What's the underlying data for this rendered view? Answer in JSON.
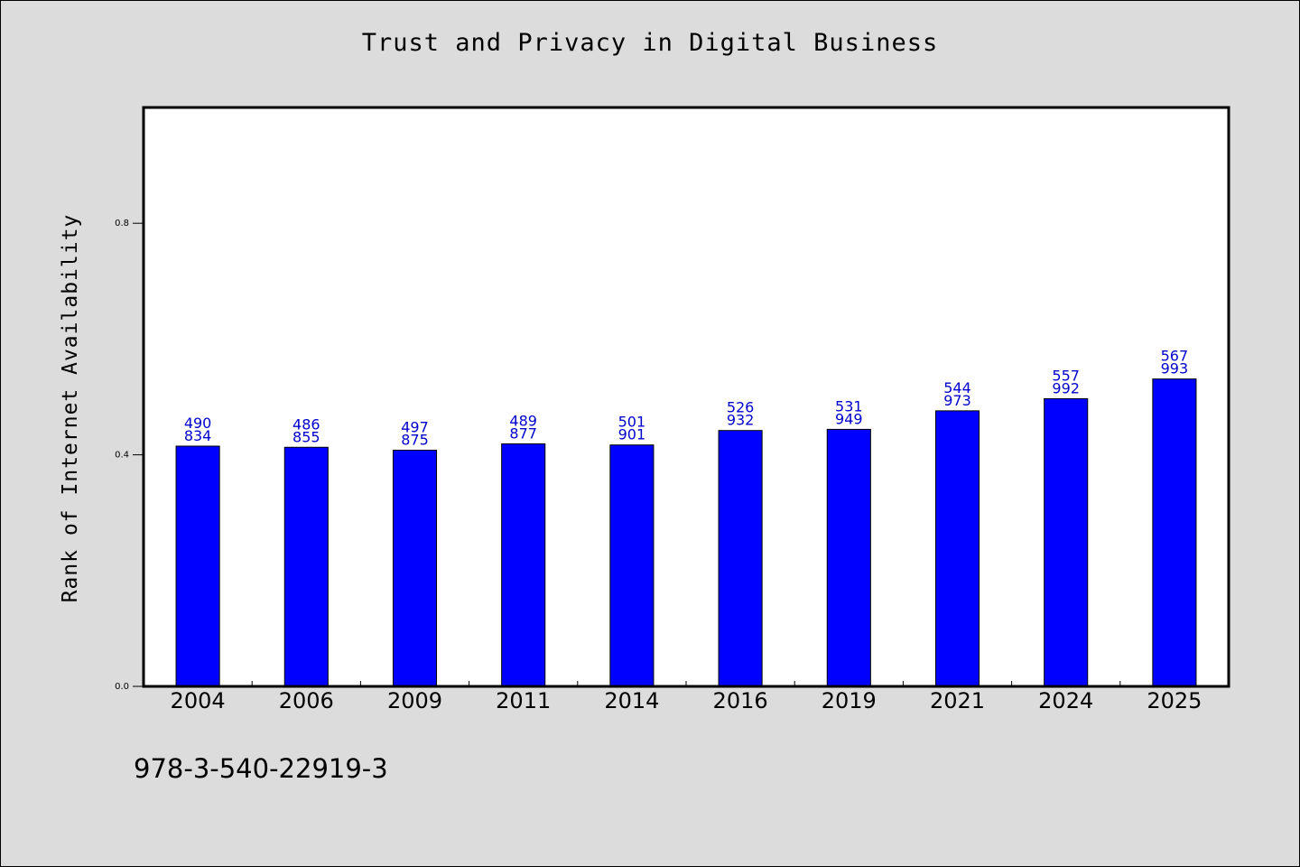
{
  "chart_data": {
    "type": "bar",
    "title": "Trust and Privacy in Digital Business",
    "xlabel": "",
    "ylabel": "Rank of Internet Availability",
    "ylim": [
      0,
      1.0
    ],
    "yticks": [
      "0.0",
      "0.4",
      "0.8"
    ],
    "categories": [
      "2004",
      "2006",
      "2009",
      "2011",
      "2014",
      "2016",
      "2019",
      "2021",
      "2024",
      "2025"
    ],
    "values": [
      0.415,
      0.413,
      0.408,
      0.419,
      0.417,
      0.442,
      0.444,
      0.476,
      0.497,
      0.531
    ],
    "labels_top": [
      "490",
      "486",
      "497",
      "489",
      "501",
      "526",
      "531",
      "544",
      "557",
      "567"
    ],
    "labels_bottom": [
      "834",
      "855",
      "875",
      "877",
      "901",
      "932",
      "949",
      "973",
      "992",
      "993"
    ],
    "bar_color": "#0000ff",
    "label_color": "#0000cc",
    "grid": false,
    "legend": "none"
  },
  "footer_text": "978-3-540-22919-3"
}
